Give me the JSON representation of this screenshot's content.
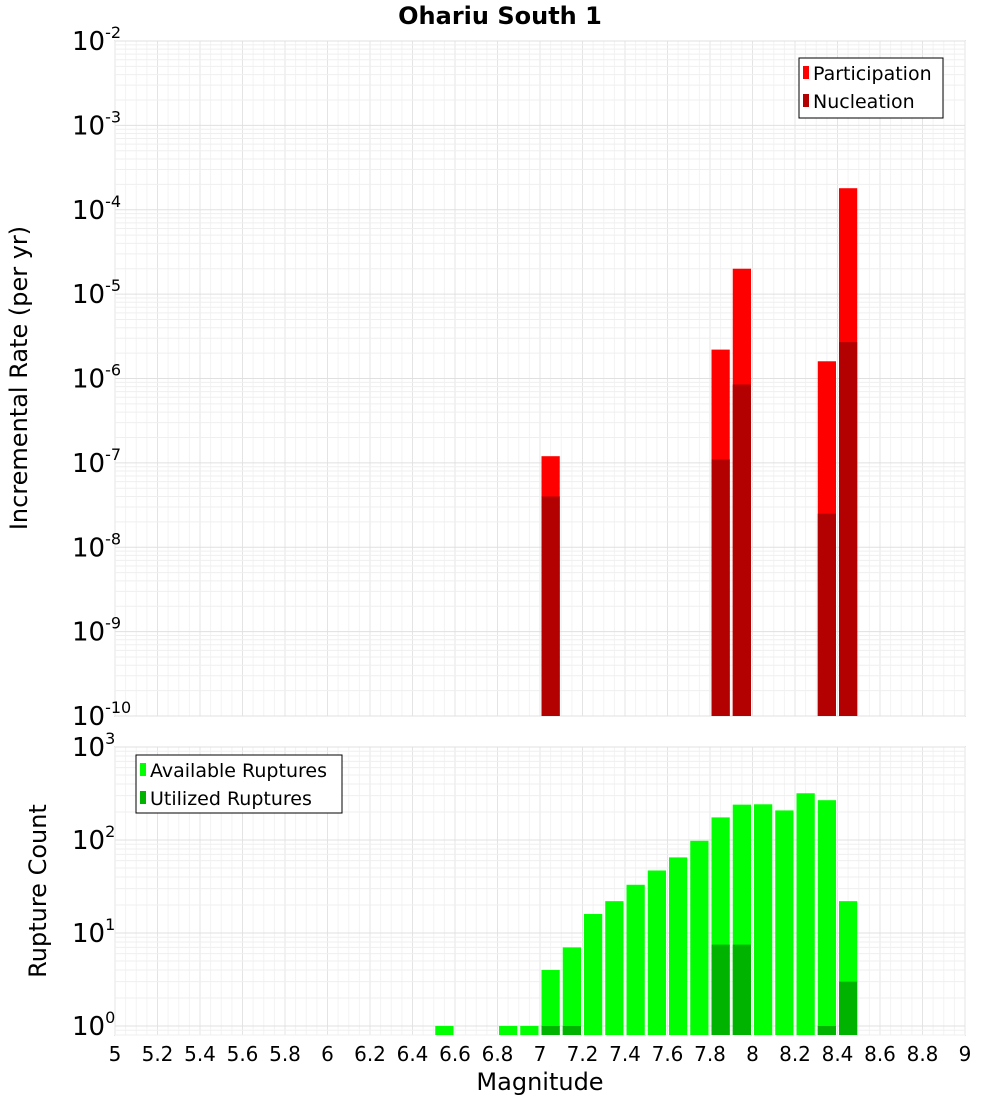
{
  "chart_data": [
    {
      "type": "bar",
      "title": "Ohariu South 1",
      "xlabel": "Magnitude",
      "ylabel": "Incremental Rate (per yr)",
      "yscale": "log",
      "xlim": [
        5,
        9
      ],
      "ylim": [
        1e-10,
        0.01
      ],
      "y_ticks": [
        {
          "base": "10",
          "exp": "-10",
          "value": 1e-10
        },
        {
          "base": "10",
          "exp": "-9",
          "value": 1e-09
        },
        {
          "base": "10",
          "exp": "-8",
          "value": 1e-08
        },
        {
          "base": "10",
          "exp": "-7",
          "value": 1e-07
        },
        {
          "base": "10",
          "exp": "-6",
          "value": 1e-06
        },
        {
          "base": "10",
          "exp": "-5",
          "value": 1e-05
        },
        {
          "base": "10",
          "exp": "-4",
          "value": 0.0001
        },
        {
          "base": "10",
          "exp": "-3",
          "value": 0.001
        },
        {
          "base": "10",
          "exp": "-2",
          "value": 0.01
        }
      ],
      "legend": {
        "position": "top-right",
        "entries": [
          "Participation",
          "Nucleation"
        ]
      },
      "series": [
        {
          "name": "Participation",
          "color": "#ff0000",
          "x": [
            7.05,
            7.85,
            7.95,
            8.35,
            8.45
          ],
          "values": [
            1.2e-07,
            2.2e-06,
            2e-05,
            1.6e-06,
            0.00018
          ]
        },
        {
          "name": "Nucleation",
          "color": "#b30000",
          "x": [
            7.05,
            7.85,
            7.95,
            8.35,
            8.45
          ],
          "values": [
            4e-08,
            1.1e-07,
            8.5e-07,
            2.5e-08,
            2.7e-06
          ]
        }
      ]
    },
    {
      "type": "bar",
      "xlabel": "Magnitude",
      "ylabel": "Rupture Count",
      "yscale": "log",
      "xlim": [
        5,
        9
      ],
      "ylim": [
        0.8,
        1000
      ],
      "x_ticks": [
        "5",
        "5.2",
        "5.4",
        "5.6",
        "5.8",
        "6",
        "6.2",
        "6.4",
        "6.6",
        "6.8",
        "7",
        "7.2",
        "7.4",
        "7.6",
        "7.8",
        "8",
        "8.2",
        "8.4",
        "8.6",
        "8.8",
        "9"
      ],
      "y_ticks": [
        {
          "base": "10",
          "exp": "0",
          "value": 1
        },
        {
          "base": "10",
          "exp": "1",
          "value": 10
        },
        {
          "base": "10",
          "exp": "2",
          "value": 100
        },
        {
          "base": "10",
          "exp": "3",
          "value": 1000
        }
      ],
      "legend": {
        "position": "top-left",
        "entries": [
          "Available Ruptures",
          "Utilized Ruptures"
        ]
      },
      "series": [
        {
          "name": "Available Ruptures",
          "color": "#00ff00",
          "x": [
            6.55,
            6.85,
            6.95,
            7.05,
            7.15,
            7.25,
            7.35,
            7.45,
            7.55,
            7.65,
            7.75,
            7.85,
            7.95,
            8.05,
            8.15,
            8.25,
            8.35,
            8.45
          ],
          "values": [
            1,
            1,
            1,
            4,
            7,
            16,
            22,
            33,
            47,
            65,
            98,
            175,
            240,
            242,
            208,
            318,
            268,
            22
          ]
        },
        {
          "name": "Utilized Ruptures",
          "color": "#00b300",
          "x": [
            7.05,
            7.15,
            7.85,
            7.95,
            8.35,
            8.45
          ],
          "values": [
            1,
            1,
            7.5,
            7.5,
            1,
            3
          ]
        }
      ]
    }
  ]
}
